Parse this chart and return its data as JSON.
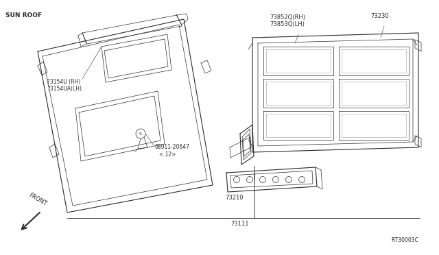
{
  "bg_color": "#ffffff",
  "line_color": "#2a2a2a",
  "title": "SUN ROOF",
  "ref_code": "R730003C",
  "parts": {
    "73154U_RH": "73154U (RH)",
    "73154UA_LH": "73154UA(LH)",
    "08911": "08911-20647",
    "12": "< 12>",
    "73111": "73111",
    "73852Q_RH": "73852Q(RH)",
    "73853Q_LH": "73853Q(LH)",
    "73230": "73230",
    "73210": "73210"
  }
}
